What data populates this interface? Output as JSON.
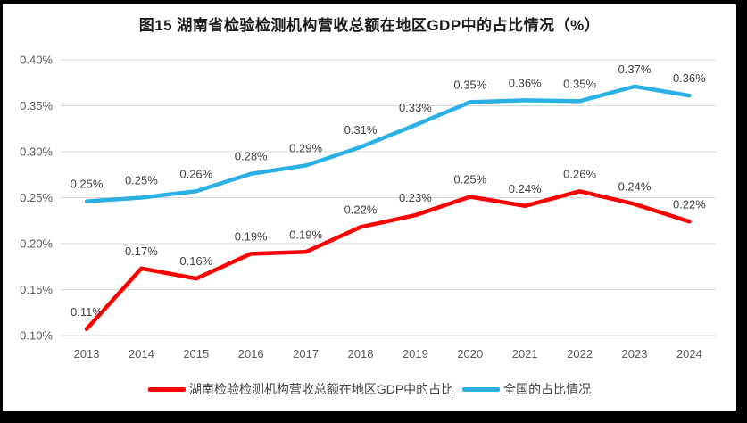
{
  "title": "图15 湖南省检验检测机构营收总额在地区GDP中的占比情况（%）",
  "chart_data": {
    "type": "line",
    "categories": [
      "2013",
      "2014",
      "2015",
      "2016",
      "2017",
      "2018",
      "2019",
      "2020",
      "2021",
      "2022",
      "2023",
      "2024"
    ],
    "series": [
      {
        "name": "湖南检验检测机构营收总额在地区GDP中的占比",
        "color": "#ff0000",
        "values": [
          0.11,
          0.17,
          0.16,
          0.19,
          0.19,
          0.22,
          0.23,
          0.25,
          0.24,
          0.26,
          0.24,
          0.22
        ],
        "labels": [
          "0.11%",
          "0.17%",
          "0.16%",
          "0.19%",
          "0.19%",
          "0.22%",
          "0.23%",
          "0.25%",
          "0.24%",
          "0.26%",
          "0.24%",
          "0.22%"
        ],
        "plot_values": [
          0.107,
          0.173,
          0.162,
          0.189,
          0.191,
          0.218,
          0.231,
          0.251,
          0.241,
          0.257,
          0.243,
          0.224
        ]
      },
      {
        "name": "全国的占比情况",
        "color": "#2ab0e4",
        "values": [
          0.25,
          0.25,
          0.26,
          0.28,
          0.29,
          0.31,
          0.33,
          0.35,
          0.36,
          0.35,
          0.37,
          0.36
        ],
        "labels": [
          "0.25%",
          "0.25%",
          "0.26%",
          "0.28%",
          "0.29%",
          "0.31%",
          "0.33%",
          "0.35%",
          "0.36%",
          "0.35%",
          "0.37%",
          "0.36%"
        ],
        "plot_values": [
          0.246,
          0.25,
          0.257,
          0.276,
          0.285,
          0.305,
          0.329,
          0.354,
          0.356,
          0.355,
          0.371,
          0.361
        ]
      }
    ],
    "y_ticks": [
      "0.10%",
      "0.15%",
      "0.20%",
      "0.25%",
      "0.30%",
      "0.35%",
      "0.40%"
    ],
    "ylim": [
      "0.10%",
      "0.40%"
    ],
    "xlabel": "",
    "ylabel": "",
    "grid": "horizontal",
    "grid_color": "#d9d9d9",
    "legend_position": "bottom"
  }
}
